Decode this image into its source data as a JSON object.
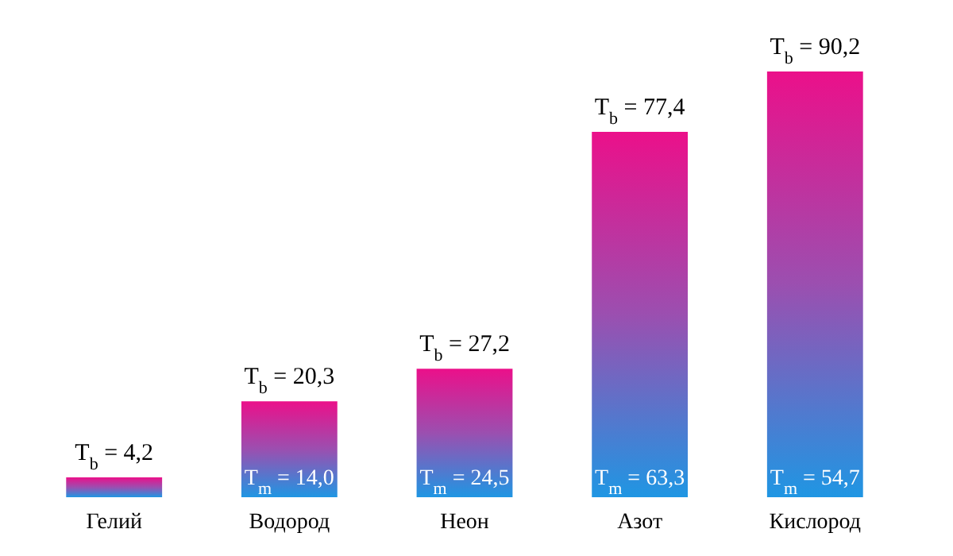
{
  "chart_data": {
    "type": "bar",
    "categories": [
      "Гелий",
      "Водород",
      "Неон",
      "Азот",
      "Кислород"
    ],
    "values": [
      4.2,
      20.3,
      27.2,
      77.4,
      90.2
    ],
    "value_labels": [
      "T$_{b}$ = 4,2",
      "T$_{b}$ = 20,3",
      "T$_{b}$ = 27,2",
      "T$_{b}$ = 77,4",
      "T$_{b}$ = 90,2"
    ],
    "color": "#9b4fb0",
    "annotations": [
      "T$_{m}$ = 14,0",
      "T$_{m}$ = 24,5",
      "T$_{m}$ = 63,3",
      "T$_{m}$ = 54,7"
    ]
  }
}
